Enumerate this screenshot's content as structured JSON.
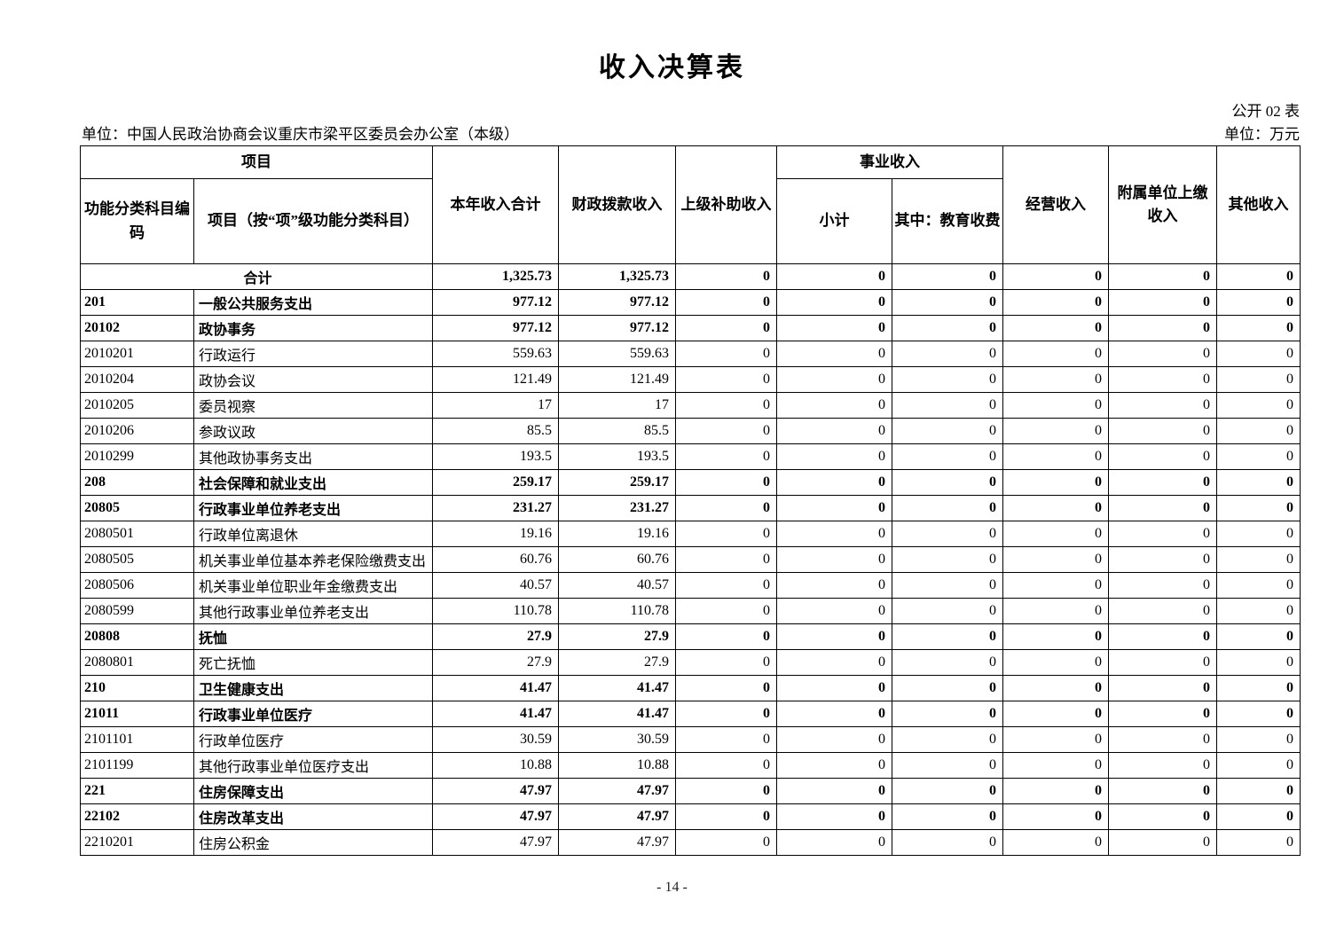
{
  "page": {
    "title": "收入决算表",
    "doc_label": "公开 02 表",
    "org_label": "单位：中国人民政治协商会议重庆市梁平区委员会办公室（本级）",
    "unit_label": "单位：万元",
    "page_number": "- 14 -"
  },
  "table": {
    "header": {
      "project_group": "项目",
      "code": "功能分类科目编码",
      "project": "项目（按“项”级功能分类科目）",
      "total_income": "本年收入合计",
      "fiscal_allocation": "财政拨款收入",
      "superior_subsidy": "上级补助收入",
      "business_income_group": "事业收入",
      "subtotal": "小计",
      "education_fee": "其中：教育收费",
      "operating_income": "经营收入",
      "affiliated_units": "附属单位上缴收入",
      "other_income": "其他收入"
    },
    "rows": [
      {
        "code": "",
        "name": "合计",
        "merged": true,
        "bold": true,
        "values": [
          "1,325.73",
          "1,325.73",
          "0",
          "0",
          "0",
          "0",
          "0",
          "0"
        ]
      },
      {
        "code": "201",
        "name": "一般公共服务支出",
        "merged": false,
        "bold": true,
        "values": [
          "977.12",
          "977.12",
          "0",
          "0",
          "0",
          "0",
          "0",
          "0"
        ]
      },
      {
        "code": "20102",
        "name": "政协事务",
        "merged": false,
        "bold": true,
        "values": [
          "977.12",
          "977.12",
          "0",
          "0",
          "0",
          "0",
          "0",
          "0"
        ]
      },
      {
        "code": "2010201",
        "name": "行政运行",
        "merged": false,
        "bold": false,
        "values": [
          "559.63",
          "559.63",
          "0",
          "0",
          "0",
          "0",
          "0",
          "0"
        ]
      },
      {
        "code": "2010204",
        "name": "政协会议",
        "merged": false,
        "bold": false,
        "values": [
          "121.49",
          "121.49",
          "0",
          "0",
          "0",
          "0",
          "0",
          "0"
        ]
      },
      {
        "code": "2010205",
        "name": "委员视察",
        "merged": false,
        "bold": false,
        "values": [
          "17",
          "17",
          "0",
          "0",
          "0",
          "0",
          "0",
          "0"
        ]
      },
      {
        "code": "2010206",
        "name": "参政议政",
        "merged": false,
        "bold": false,
        "values": [
          "85.5",
          "85.5",
          "0",
          "0",
          "0",
          "0",
          "0",
          "0"
        ]
      },
      {
        "code": "2010299",
        "name": "其他政协事务支出",
        "merged": false,
        "bold": false,
        "values": [
          "193.5",
          "193.5",
          "0",
          "0",
          "0",
          "0",
          "0",
          "0"
        ]
      },
      {
        "code": "208",
        "name": "社会保障和就业支出",
        "merged": false,
        "bold": true,
        "values": [
          "259.17",
          "259.17",
          "0",
          "0",
          "0",
          "0",
          "0",
          "0"
        ]
      },
      {
        "code": "20805",
        "name": "行政事业单位养老支出",
        "merged": false,
        "bold": true,
        "values": [
          "231.27",
          "231.27",
          "0",
          "0",
          "0",
          "0",
          "0",
          "0"
        ]
      },
      {
        "code": "2080501",
        "name": "行政单位离退休",
        "merged": false,
        "bold": false,
        "values": [
          "19.16",
          "19.16",
          "0",
          "0",
          "0",
          "0",
          "0",
          "0"
        ]
      },
      {
        "code": "2080505",
        "name": "机关事业单位基本养老保险缴费支出",
        "merged": false,
        "bold": false,
        "values": [
          "60.76",
          "60.76",
          "0",
          "0",
          "0",
          "0",
          "0",
          "0"
        ]
      },
      {
        "code": "2080506",
        "name": "机关事业单位职业年金缴费支出",
        "merged": false,
        "bold": false,
        "values": [
          "40.57",
          "40.57",
          "0",
          "0",
          "0",
          "0",
          "0",
          "0"
        ]
      },
      {
        "code": "2080599",
        "name": "其他行政事业单位养老支出",
        "merged": false,
        "bold": false,
        "values": [
          "110.78",
          "110.78",
          "0",
          "0",
          "0",
          "0",
          "0",
          "0"
        ]
      },
      {
        "code": "20808",
        "name": "抚恤",
        "merged": false,
        "bold": true,
        "values": [
          "27.9",
          "27.9",
          "0",
          "0",
          "0",
          "0",
          "0",
          "0"
        ]
      },
      {
        "code": "2080801",
        "name": "死亡抚恤",
        "merged": false,
        "bold": false,
        "values": [
          "27.9",
          "27.9",
          "0",
          "0",
          "0",
          "0",
          "0",
          "0"
        ]
      },
      {
        "code": "210",
        "name": "卫生健康支出",
        "merged": false,
        "bold": true,
        "values": [
          "41.47",
          "41.47",
          "0",
          "0",
          "0",
          "0",
          "0",
          "0"
        ]
      },
      {
        "code": "21011",
        "name": "行政事业单位医疗",
        "merged": false,
        "bold": true,
        "values": [
          "41.47",
          "41.47",
          "0",
          "0",
          "0",
          "0",
          "0",
          "0"
        ]
      },
      {
        "code": "2101101",
        "name": "行政单位医疗",
        "merged": false,
        "bold": false,
        "values": [
          "30.59",
          "30.59",
          "0",
          "0",
          "0",
          "0",
          "0",
          "0"
        ]
      },
      {
        "code": "2101199",
        "name": "其他行政事业单位医疗支出",
        "merged": false,
        "bold": false,
        "values": [
          "10.88",
          "10.88",
          "0",
          "0",
          "0",
          "0",
          "0",
          "0"
        ]
      },
      {
        "code": "221",
        "name": "住房保障支出",
        "merged": false,
        "bold": true,
        "values": [
          "47.97",
          "47.97",
          "0",
          "0",
          "0",
          "0",
          "0",
          "0"
        ]
      },
      {
        "code": "22102",
        "name": "住房改革支出",
        "merged": false,
        "bold": true,
        "values": [
          "47.97",
          "47.97",
          "0",
          "0",
          "0",
          "0",
          "0",
          "0"
        ]
      },
      {
        "code": "2210201",
        "name": "住房公积金",
        "merged": false,
        "bold": false,
        "values": [
          "47.97",
          "47.97",
          "0",
          "0",
          "0",
          "0",
          "0",
          "0"
        ]
      }
    ]
  }
}
